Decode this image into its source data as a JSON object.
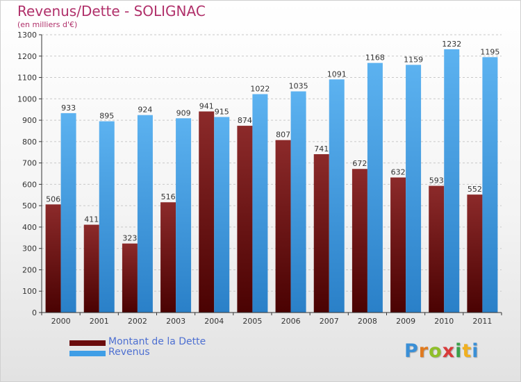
{
  "header": {
    "title": "Revenus/Dette - SOLIGNAC",
    "subtitle": "(en milliers d'€)"
  },
  "colors": {
    "debt": "#7a1414",
    "revenue": "#3f9ee6",
    "grid": "#c8c8c8",
    "axis": "#333333"
  },
  "legend": {
    "items": [
      {
        "label": "Montant de la Dette",
        "color": "#6b0c0c"
      },
      {
        "label": "Revenus",
        "color": "#3f9ee6"
      }
    ]
  },
  "logo": {
    "text": "Proxiti"
  },
  "chart_data": {
    "type": "bar",
    "categories": [
      "2000",
      "2001",
      "2002",
      "2003",
      "2004",
      "2005",
      "2006",
      "2007",
      "2008",
      "2009",
      "2010",
      "2011"
    ],
    "series": [
      {
        "name": "Montant de la Dette",
        "values": [
          506,
          411,
          323,
          516,
          941,
          874,
          807,
          741,
          672,
          632,
          593,
          552
        ]
      },
      {
        "name": "Revenus",
        "values": [
          933,
          895,
          924,
          909,
          915,
          1022,
          1035,
          1091,
          1168,
          1159,
          1232,
          1195
        ]
      }
    ],
    "ylim": [
      0,
      1300
    ],
    "yticks": [
      0,
      100,
      200,
      300,
      400,
      500,
      600,
      700,
      800,
      900,
      1000,
      1100,
      1200,
      1300
    ],
    "grid": true,
    "legend_position": "bottom-left"
  }
}
